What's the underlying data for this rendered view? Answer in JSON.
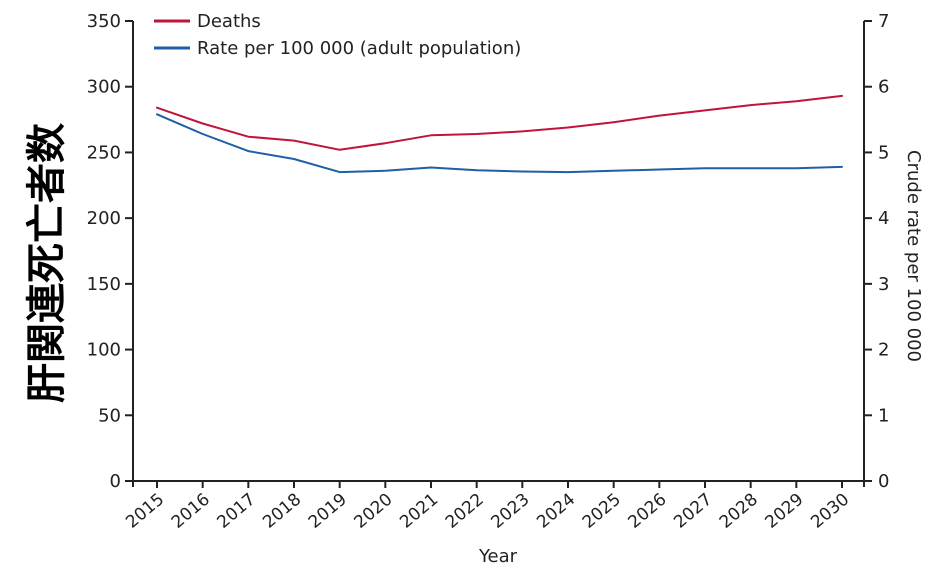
{
  "chart_data": {
    "type": "line",
    "title": "",
    "xlabel": "Year",
    "ylabel_left": "肝関連死亡者数",
    "ylabel_right": "Crude rate per 100 000",
    "x": [
      "2015",
      "2016",
      "2017",
      "2018",
      "2019",
      "2020",
      "2021",
      "2022",
      "2023",
      "2024",
      "2025",
      "2026",
      "2027",
      "2028",
      "2029",
      "2030"
    ],
    "y_left_lim": [
      0,
      350
    ],
    "y_left_ticks": [
      0,
      50,
      100,
      150,
      200,
      250,
      300,
      350
    ],
    "y_right_lim": [
      0,
      7
    ],
    "y_right_ticks": [
      0,
      1,
      2,
      3,
      4,
      5,
      6,
      7
    ],
    "grid": false,
    "legend_position": "top-left",
    "series": [
      {
        "name": "Deaths",
        "axis": "left",
        "color": "#c0143c",
        "values": [
          284,
          272,
          262,
          259,
          252,
          257,
          263,
          264,
          266,
          269,
          273,
          278,
          282,
          286,
          289,
          293
        ]
      },
      {
        "name": "Rate per 100 000 (adult population)",
        "axis": "right",
        "color": "#1f5fa8",
        "values": [
          5.58,
          5.28,
          5.02,
          4.9,
          4.7,
          4.72,
          4.77,
          4.73,
          4.71,
          4.7,
          4.72,
          4.74,
          4.76,
          4.76,
          4.76,
          4.78
        ]
      }
    ]
  }
}
